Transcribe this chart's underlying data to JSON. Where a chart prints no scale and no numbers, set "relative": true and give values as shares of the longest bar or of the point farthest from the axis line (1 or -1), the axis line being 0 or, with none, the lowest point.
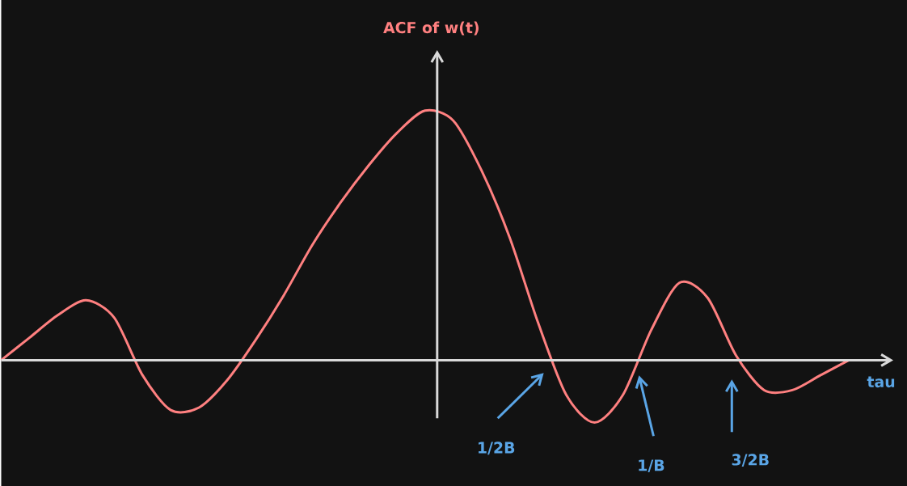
{
  "chart_data": {
    "type": "line",
    "relative": true,
    "xlabel": "tau",
    "ylabel": "ACF of w(t)",
    "categories": [
      null,
      null,
      null,
      null,
      null,
      null,
      null,
      null,
      null,
      null,
      null,
      null,
      null,
      null,
      null,
      null,
      null,
      null,
      null,
      null,
      null,
      null,
      null,
      null,
      null,
      null,
      null,
      null,
      null,
      null,
      null
    ],
    "series": [
      {
        "color": "#ff8080",
        "values": [
          0,
          0.09,
          0.18,
          0.24,
          0.17,
          -0.06,
          -0.2,
          -0.19,
          -0.08,
          0.08,
          0.26,
          0.46,
          0.63,
          0.78,
          0.91,
          1.0,
          0.96,
          0.76,
          0.49,
          0.15,
          -0.14,
          -0.25,
          -0.14,
          0.12,
          0.31,
          0.25,
          0.02,
          -0.12,
          -0.12,
          -0.06,
          0
        ]
      }
    ],
    "annotations": [
      "1/2B",
      "1/B",
      "3/2B"
    ]
  }
}
